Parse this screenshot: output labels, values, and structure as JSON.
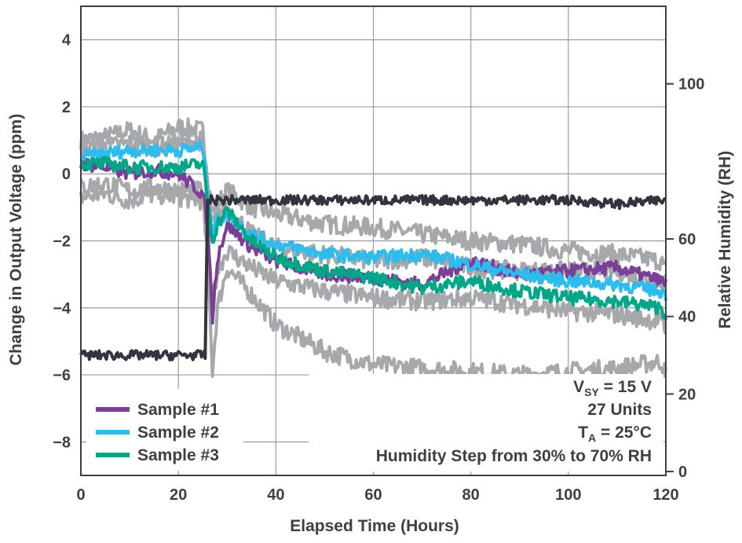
{
  "chart_data": {
    "type": "line",
    "xlabel": "Elapsed Time (Hours)",
    "ylabel": "Change in Output Voltage (ppm)",
    "y2label": "Relative Humidity (RH)",
    "xlim": [
      0,
      120
    ],
    "ylim": [
      -9,
      5
    ],
    "y2lim": [
      -1,
      120
    ],
    "xticks": [
      "0",
      "20",
      "40",
      "60",
      "80",
      "100",
      "120"
    ],
    "yticks": [
      {
        "v": 4,
        "label": "4"
      },
      {
        "v": 2,
        "label": "2"
      },
      {
        "v": 0,
        "label": "0"
      },
      {
        "v": -2,
        "label": "−2"
      },
      {
        "v": -4,
        "label": "−4"
      },
      {
        "v": -6,
        "label": "−6"
      },
      {
        "v": -8,
        "label": "−8"
      }
    ],
    "y2ticks": [
      {
        "v": 0,
        "label": "0"
      },
      {
        "v": 20,
        "label": "20"
      },
      {
        "v": 40,
        "label": "40"
      },
      {
        "v": 60,
        "label": "60"
      },
      {
        "v": 100,
        "label": "100"
      }
    ],
    "grid": true,
    "legend_position": "bottom-left",
    "annotations": {
      "line1_main": "V",
      "line1_sub": "SY",
      "line1_rest": " = 15 V",
      "line2": "27 Units",
      "line3_main": "T",
      "line3_sub": "A",
      "line3_rest": " = 25°C",
      "line4": "Humidity Step from 30% to 70% RH"
    },
    "series": [
      {
        "name": "Sample #1",
        "color": "#7b3f98",
        "axis": "left",
        "x": [
          0,
          5,
          10,
          15,
          20,
          25,
          26,
          27,
          28,
          30,
          35,
          40,
          50,
          60,
          70,
          80,
          90,
          100,
          110,
          119,
          120
        ],
        "y": [
          0.3,
          0.2,
          0.0,
          0.1,
          0.0,
          -0.6,
          -1.5,
          -4.3,
          -2.5,
          -1.5,
          -2.2,
          -2.6,
          -3.0,
          -3.1,
          -3.3,
          -2.6,
          -3.0,
          -2.9,
          -2.8,
          -3.2,
          -3.3
        ]
      },
      {
        "name": "Sample #2",
        "color": "#2ebbee",
        "axis": "left",
        "x": [
          0,
          5,
          10,
          15,
          20,
          25,
          26,
          27,
          28,
          30,
          35,
          40,
          50,
          60,
          70,
          80,
          90,
          100,
          110,
          119,
          120
        ],
        "y": [
          0.5,
          0.6,
          0.7,
          0.7,
          0.7,
          0.8,
          -0.5,
          -1.8,
          -1.4,
          -1.2,
          -1.8,
          -2.1,
          -2.4,
          -2.5,
          -2.4,
          -2.7,
          -3.0,
          -3.2,
          -3.3,
          -3.5,
          -3.6
        ]
      },
      {
        "name": "Sample #3",
        "color": "#00a688",
        "axis": "left",
        "x": [
          0,
          5,
          10,
          15,
          20,
          25,
          26,
          27,
          28,
          30,
          35,
          40,
          50,
          60,
          70,
          80,
          90,
          100,
          110,
          119,
          120
        ],
        "y": [
          0.3,
          0.3,
          0.2,
          0.2,
          0.2,
          0.3,
          -0.8,
          -2.0,
          -1.5,
          -1.1,
          -2.0,
          -2.5,
          -2.9,
          -3.1,
          -3.4,
          -3.2,
          -3.5,
          -3.7,
          -3.8,
          -4.0,
          -4.2
        ]
      },
      {
        "name": "",
        "color": "#33343d",
        "axis": "right",
        "x": [
          0,
          10,
          20,
          25.5,
          26,
          30,
          40,
          60,
          80,
          100,
          110,
          120
        ],
        "y": [
          30,
          30,
          30,
          30,
          70,
          70,
          70,
          70,
          70,
          70,
          69,
          70
        ]
      }
    ],
    "background_envelope": {
      "color": "#a6a8ab",
      "x": [
        0,
        5,
        10,
        15,
        20,
        25,
        26,
        27,
        28,
        30,
        35,
        40,
        50,
        60,
        70,
        80,
        90,
        100,
        110,
        119,
        120
      ],
      "upper": [
        1.0,
        1.1,
        1.3,
        1.0,
        1.4,
        1.3,
        0.0,
        -1.2,
        -0.9,
        -0.5,
        -1.0,
        -1.2,
        -1.5,
        -1.6,
        -1.8,
        -2.0,
        -2.1,
        -2.3,
        -2.4,
        -2.6,
        -2.9
      ],
      "lower": [
        -0.7,
        -0.6,
        -0.8,
        -0.6,
        -0.7,
        -0.8,
        -2.5,
        -5.9,
        -4.0,
        -2.8,
        -3.6,
        -4.5,
        -5.3,
        -5.7,
        -5.8,
        -5.9,
        -6.0,
        -5.9,
        -5.8,
        -5.6,
        -6.0
      ],
      "middle_upper": [
        0.8,
        0.8,
        0.9,
        0.8,
        0.9,
        1.0,
        -0.5,
        -1.6,
        -1.2,
        -1.0,
        -1.8,
        -2.2,
        -2.4,
        -2.6,
        -2.5,
        -2.8,
        -2.9,
        -2.9,
        -2.9,
        -3.2,
        -3.2
      ],
      "middle_lower": [
        -0.4,
        -0.3,
        -0.5,
        -0.4,
        -0.5,
        -0.5,
        -2.0,
        -3.8,
        -2.9,
        -2.3,
        -2.8,
        -3.2,
        -3.5,
        -3.7,
        -3.8,
        -3.7,
        -3.9,
        -4.1,
        -4.2,
        -4.4,
        -4.7
      ]
    }
  }
}
